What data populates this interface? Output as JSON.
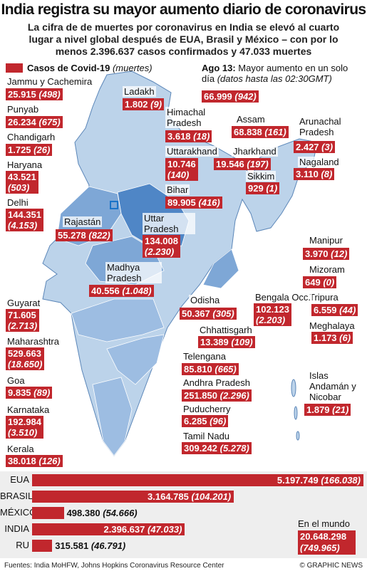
{
  "header": {
    "title": "India registra su mayor aumento diario de coronavirus",
    "subtitle": "La cifra de de muertes por coronavirus en India se elevó al cuarto lugar a nivel global después de EUA, Brasil y México – con por lo menos 2.396.637 casos confirmados y 47.033 muertes"
  },
  "legend": {
    "label": "Casos de Covid-19",
    "note": "(muertes)"
  },
  "record": {
    "date": "Ago 13:",
    "text": "Mayor aumento en un solo día",
    "detail": "(datos hasta las 02:30GMT)",
    "cases": "66.999",
    "deaths": "(942)"
  },
  "states": [
    {
      "name": "Jammu y Cachemira",
      "cases": "25.915",
      "deaths": "(498)"
    },
    {
      "name": "Punyab",
      "cases": "26.234",
      "deaths": "(675)"
    },
    {
      "name": "Chandigarh",
      "cases": "1.725",
      "deaths": "(26)"
    },
    {
      "name": "Haryana",
      "cases": "43.521",
      "deaths": "(503)"
    },
    {
      "name": "Delhi",
      "cases": "144.351",
      "deaths": "(4.153)"
    },
    {
      "name": "Rajastán",
      "cases": "55.278",
      "deaths": "(822)"
    },
    {
      "name": "Ladakh",
      "cases": "1.802",
      "deaths": "(9)"
    },
    {
      "name": "Himachal Pradesh",
      "cases": "3.618",
      "deaths": "(18)"
    },
    {
      "name": "Uttarakhand",
      "cases": "10.746",
      "deaths": "(140)"
    },
    {
      "name": "Bihar",
      "cases": "89.905",
      "deaths": "(416)"
    },
    {
      "name": "Uttar Pradesh",
      "cases": "134.008",
      "deaths": "(2.230)"
    },
    {
      "name": "Madhya Pradesh",
      "cases": "40.556",
      "deaths": "(1.048)"
    },
    {
      "name": "Assam",
      "cases": "68.838",
      "deaths": "(161)"
    },
    {
      "name": "Jharkhand",
      "cases": "19.546",
      "deaths": "(197)"
    },
    {
      "name": "Sikkim",
      "cases": "929",
      "deaths": "(1)"
    },
    {
      "name": "Arunachal Pradesh",
      "cases": "2.427",
      "deaths": "(3)"
    },
    {
      "name": "Nagaland",
      "cases": "3.110",
      "deaths": "(8)"
    },
    {
      "name": "Manipur",
      "cases": "3.970",
      "deaths": "(12)"
    },
    {
      "name": "Mizoram",
      "cases": "649",
      "deaths": "(0)"
    },
    {
      "name": "Tripura",
      "cases": "6.559",
      "deaths": "(44)"
    },
    {
      "name": "Meghalaya",
      "cases": "1.173",
      "deaths": "(6)"
    },
    {
      "name": "Odisha",
      "cases": "50.367",
      "deaths": "(305)"
    },
    {
      "name": "Bengala Occ.",
      "cases": "102.123",
      "deaths": "(2.203)"
    },
    {
      "name": "Chhattisgarh",
      "cases": "13.389",
      "deaths": "(109)"
    },
    {
      "name": "Guyarat",
      "cases": "71.605",
      "deaths": "(2.713)"
    },
    {
      "name": "Maharashtra",
      "cases": "529.663",
      "deaths": "(18.650)"
    },
    {
      "name": "Goa",
      "cases": "9.835",
      "deaths": "(89)"
    },
    {
      "name": "Karnataka",
      "cases": "192.984",
      "deaths": "(3.510)"
    },
    {
      "name": "Kerala",
      "cases": "38.018",
      "deaths": "(126)"
    },
    {
      "name": "Telengana",
      "cases": "85.810",
      "deaths": "(665)"
    },
    {
      "name": "Andhra Pradesh",
      "cases": "251.850",
      "deaths": "(2.296)"
    },
    {
      "name": "Puducherry",
      "cases": "6.285",
      "deaths": "(96)"
    },
    {
      "name": "Tamil Nadu",
      "cases": "309.242",
      "deaths": "(5.278)"
    },
    {
      "name": "Islas Andamán y Nicobar",
      "cases": "1.879",
      "deaths": "(21)"
    }
  ],
  "chart_data": {
    "type": "bar",
    "categories": [
      "EUA",
      "BRASIL",
      "MÉXICO",
      "INDIA",
      "RU"
    ],
    "values": [
      5197749,
      3164785,
      498380,
      2396637,
      315581
    ],
    "value_labels": [
      "5.197.749",
      "3.164.785",
      "498.380",
      "2.396.637",
      "315.581"
    ],
    "deaths_labels": [
      "(166.038)",
      "(104.201)",
      "(54.666)",
      "(47.033)",
      "(46.791)"
    ],
    "color": "#c1272d"
  },
  "world": {
    "label": "En el mundo",
    "cases": "20.648.298",
    "deaths": "(749.965)"
  },
  "footer": {
    "source": "Fuentes: India MoHFW, Johns Hopkins Coronavirus Resource Center",
    "credit": "© GRAPHIC NEWS"
  }
}
